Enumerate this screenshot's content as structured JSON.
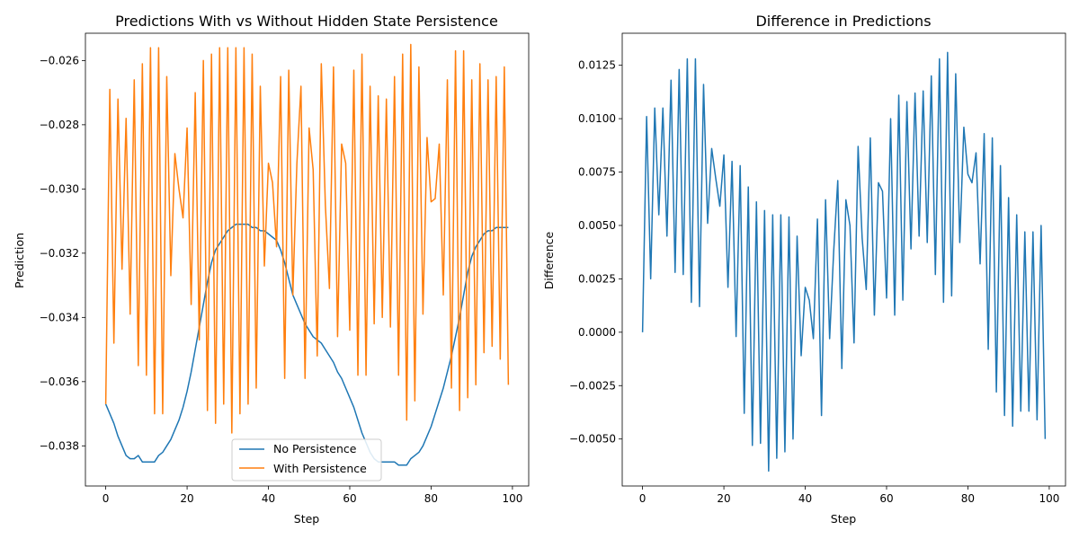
{
  "colors": {
    "blue": "#1f77b4",
    "orange": "#ff7f0e"
  },
  "chart_data": [
    {
      "type": "line",
      "title": "Predictions With vs Without Hidden State Persistence",
      "xlabel": "Step",
      "ylabel": "Prediction",
      "xlim": [
        -5,
        104
      ],
      "ylim": [
        -0.03925,
        -0.02515
      ],
      "xticks": [
        0,
        20,
        40,
        60,
        80,
        100
      ],
      "xtick_labels": [
        "0",
        "20",
        "40",
        "60",
        "80",
        "100"
      ],
      "yticks": [
        -0.038,
        -0.036,
        -0.034,
        -0.032,
        -0.03,
        -0.028,
        -0.026
      ],
      "ytick_labels": [
        "−0.038",
        "−0.036",
        "−0.034",
        "−0.032",
        "−0.030",
        "−0.028",
        "−0.026"
      ],
      "legend_position": "lower center",
      "series": [
        {
          "name": "No Persistence",
          "color": "#1f77b4",
          "x": [
            0,
            1,
            2,
            3,
            4,
            5,
            6,
            7,
            8,
            9,
            10,
            11,
            12,
            13,
            14,
            15,
            16,
            17,
            18,
            19,
            20,
            21,
            22,
            23,
            24,
            25,
            26,
            27,
            28,
            29,
            30,
            31,
            32,
            33,
            34,
            35,
            36,
            37,
            38,
            39,
            40,
            41,
            42,
            43,
            44,
            45,
            46,
            47,
            48,
            49,
            50,
            51,
            52,
            53,
            54,
            55,
            56,
            57,
            58,
            59,
            60,
            61,
            62,
            63,
            64,
            65,
            66,
            67,
            68,
            69,
            70,
            71,
            72,
            73,
            74,
            75,
            76,
            77,
            78,
            79,
            80,
            81,
            82,
            83,
            84,
            85,
            86,
            87,
            88,
            89,
            90,
            91,
            92,
            93,
            94,
            95,
            96,
            97,
            98,
            99
          ],
          "values": [
            -0.0367,
            -0.037,
            -0.0373,
            -0.0377,
            -0.038,
            -0.0383,
            -0.0384,
            -0.0384,
            -0.0383,
            -0.0385,
            -0.0385,
            -0.0385,
            -0.0385,
            -0.0383,
            -0.0382,
            -0.038,
            -0.0378,
            -0.0375,
            -0.0372,
            -0.0368,
            -0.0363,
            -0.0357,
            -0.035,
            -0.0343,
            -0.0336,
            -0.0329,
            -0.0323,
            -0.0319,
            -0.0317,
            -0.0315,
            -0.0313,
            -0.0312,
            -0.0311,
            -0.0311,
            -0.0311,
            -0.0311,
            -0.0312,
            -0.0312,
            -0.0313,
            -0.0313,
            -0.0314,
            -0.0315,
            -0.0316,
            -0.0319,
            -0.0323,
            -0.0328,
            -0.0333,
            -0.0336,
            -0.0339,
            -0.0342,
            -0.0344,
            -0.0346,
            -0.0347,
            -0.0348,
            -0.035,
            -0.0352,
            -0.0354,
            -0.0357,
            -0.0359,
            -0.0362,
            -0.0365,
            -0.0368,
            -0.0372,
            -0.0376,
            -0.0379,
            -0.0382,
            -0.0384,
            -0.0385,
            -0.0385,
            -0.0385,
            -0.0385,
            -0.0385,
            -0.0386,
            -0.0386,
            -0.0386,
            -0.0384,
            -0.0383,
            -0.0382,
            -0.038,
            -0.0377,
            -0.0374,
            -0.037,
            -0.0366,
            -0.0362,
            -0.0357,
            -0.0352,
            -0.0346,
            -0.034,
            -0.0333,
            -0.0326,
            -0.0321,
            -0.0318,
            -0.0316,
            -0.0314,
            -0.0313,
            -0.0313,
            -0.0312,
            -0.0312,
            -0.0312,
            -0.0312
          ]
        },
        {
          "name": "With Persistence",
          "color": "#ff7f0e",
          "x": [
            0,
            1,
            2,
            3,
            4,
            5,
            6,
            7,
            8,
            9,
            10,
            11,
            12,
            13,
            14,
            15,
            16,
            17,
            18,
            19,
            20,
            21,
            22,
            23,
            24,
            25,
            26,
            27,
            28,
            29,
            30,
            31,
            32,
            33,
            34,
            35,
            36,
            37,
            38,
            39,
            40,
            41,
            42,
            43,
            44,
            45,
            46,
            47,
            48,
            49,
            50,
            51,
            52,
            53,
            54,
            55,
            56,
            57,
            58,
            59,
            60,
            61,
            62,
            63,
            64,
            65,
            66,
            67,
            68,
            69,
            70,
            71,
            72,
            73,
            74,
            75,
            76,
            77,
            78,
            79,
            80,
            81,
            82,
            83,
            84,
            85,
            86,
            87,
            88,
            89,
            90,
            91,
            92,
            93,
            94,
            95,
            96,
            97,
            98,
            99
          ],
          "values": [
            -0.0367,
            -0.0269,
            -0.0348,
            -0.0272,
            -0.0325,
            -0.0278,
            -0.0339,
            -0.0266,
            -0.0355,
            -0.0261,
            -0.0358,
            -0.0256,
            -0.037,
            -0.0256,
            -0.037,
            -0.0265,
            -0.0327,
            -0.0289,
            -0.03,
            -0.0309,
            -0.0281,
            -0.0336,
            -0.027,
            -0.0347,
            -0.026,
            -0.0369,
            -0.0258,
            -0.0373,
            -0.0256,
            -0.0367,
            -0.0256,
            -0.0376,
            -0.0256,
            -0.037,
            -0.0256,
            -0.0367,
            -0.0258,
            -0.0362,
            -0.0268,
            -0.0324,
            -0.0292,
            -0.0298,
            -0.0318,
            -0.0265,
            -0.0359,
            -0.0263,
            -0.0333,
            -0.0292,
            -0.0268,
            -0.0359,
            -0.0281,
            -0.0294,
            -0.0352,
            -0.0261,
            -0.0305,
            -0.0331,
            -0.0262,
            -0.0346,
            -0.0286,
            -0.0292,
            -0.0344,
            -0.0263,
            -0.0358,
            -0.0258,
            -0.0358,
            -0.0268,
            -0.0342,
            -0.0271,
            -0.034,
            -0.0272,
            -0.0343,
            -0.0265,
            -0.0358,
            -0.0258,
            -0.0372,
            -0.0255,
            -0.0366,
            -0.0262,
            -0.0339,
            -0.0284,
            -0.0304,
            -0.0303,
            -0.0286,
            -0.0333,
            -0.0266,
            -0.0362,
            -0.0257,
            -0.0369,
            -0.0257,
            -0.0365,
            -0.0266,
            -0.0361,
            -0.0261,
            -0.0351,
            -0.0266,
            -0.0349,
            -0.0265,
            -0.0353,
            -0.0262,
            -0.0361
          ]
        }
      ]
    },
    {
      "type": "line",
      "title": "Difference in Predictions",
      "xlabel": "Step",
      "ylabel": "Difference",
      "xlim": [
        -5,
        104
      ],
      "ylim": [
        -0.0072,
        0.014
      ],
      "xticks": [
        0,
        20,
        40,
        60,
        80,
        100
      ],
      "xtick_labels": [
        "0",
        "20",
        "40",
        "60",
        "80",
        "100"
      ],
      "yticks": [
        -0.005,
        -0.0025,
        0,
        0.0025,
        0.005,
        0.0075,
        0.01,
        0.0125
      ],
      "ytick_labels": [
        "−0.0050",
        "−0.0025",
        "0.0000",
        "0.0025",
        "0.0050",
        "0.0075",
        "0.0100",
        "0.0125"
      ],
      "series": [
        {
          "color": "#1f77b4",
          "x": [
            0,
            1,
            2,
            3,
            4,
            5,
            6,
            7,
            8,
            9,
            10,
            11,
            12,
            13,
            14,
            15,
            16,
            17,
            18,
            19,
            20,
            21,
            22,
            23,
            24,
            25,
            26,
            27,
            28,
            29,
            30,
            31,
            32,
            33,
            34,
            35,
            36,
            37,
            38,
            39,
            40,
            41,
            42,
            43,
            44,
            45,
            46,
            47,
            48,
            49,
            50,
            51,
            52,
            53,
            54,
            55,
            56,
            57,
            58,
            59,
            60,
            61,
            62,
            63,
            64,
            65,
            66,
            67,
            68,
            69,
            70,
            71,
            72,
            73,
            74,
            75,
            76,
            77,
            78,
            79,
            80,
            81,
            82,
            83,
            84,
            85,
            86,
            87,
            88,
            89,
            90,
            91,
            92,
            93,
            94,
            95,
            96,
            97,
            98,
            99
          ],
          "values": [
            0.0,
            0.0101,
            0.0025,
            0.0105,
            0.0055,
            0.0105,
            0.0045,
            0.0118,
            0.0028,
            0.0123,
            0.0027,
            0.0128,
            0.0014,
            0.0128,
            0.0012,
            0.0116,
            0.0051,
            0.0086,
            0.0072,
            0.0059,
            0.0083,
            0.0021,
            0.008,
            -0.0002,
            0.0078,
            -0.0038,
            0.0068,
            -0.0053,
            0.0061,
            -0.0052,
            0.0057,
            -0.0065,
            0.0055,
            -0.0059,
            0.0055,
            -0.0056,
            0.0054,
            -0.005,
            0.0045,
            -0.0011,
            0.0021,
            0.0015,
            -0.0003,
            0.0053,
            -0.0039,
            0.0062,
            -0.0003,
            0.0038,
            0.0071,
            -0.0017,
            0.0062,
            0.005,
            -0.0005,
            0.0087,
            0.0044,
            0.002,
            0.0091,
            0.0008,
            0.007,
            0.0066,
            0.0016,
            0.01,
            0.0008,
            0.0111,
            0.0015,
            0.0108,
            0.0039,
            0.0112,
            0.0045,
            0.0113,
            0.0042,
            0.012,
            0.0027,
            0.0128,
            0.0014,
            0.0131,
            0.0017,
            0.0121,
            0.0042,
            0.0096,
            0.0074,
            0.007,
            0.0084,
            0.0032,
            0.0093,
            -0.0008,
            0.0091,
            -0.0028,
            0.0078,
            -0.0039,
            0.0063,
            -0.0044,
            0.0055,
            -0.0037,
            0.0047,
            -0.0037,
            0.0047,
            -0.0041,
            0.005,
            -0.005
          ]
        }
      ]
    }
  ]
}
